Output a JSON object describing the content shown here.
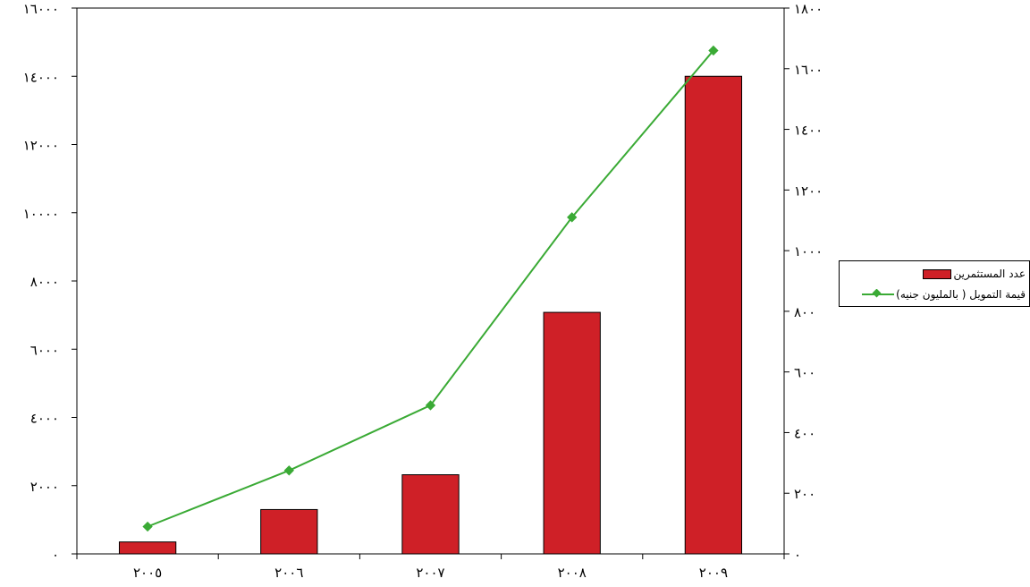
{
  "colors": {
    "bar": "#cf2027",
    "line": "#3aaa35",
    "axis": "#000000"
  },
  "chart_data": {
    "type": "bar",
    "categories": [
      "٢٠٠٥",
      "٢٠٠٦",
      "٢٠٠٧",
      "٢٠٠٨",
      "٢٠٠٩"
    ],
    "series": [
      {
        "name": "عدد المستثمرين",
        "type": "bar",
        "axis": "left",
        "values": [
          350,
          1300,
          2320,
          7080,
          14000
        ]
      },
      {
        "name": "قيمة التمويل  ( بالمليون جنيه)",
        "type": "line",
        "axis": "right",
        "values": [
          90,
          275,
          490,
          1110,
          1660
        ]
      }
    ],
    "left_axis": {
      "min": 0,
      "max": 16000,
      "step": 2000,
      "tick_labels": [
        "٠",
        "٢٠٠٠",
        "٤٠٠٠",
        "٦٠٠٠",
        "٨٠٠٠",
        "١٠٠٠٠",
        "١٢٠٠٠",
        "١٤٠٠٠",
        "١٦٠٠٠"
      ]
    },
    "right_axis": {
      "min": 0,
      "max": 1800,
      "step": 200,
      "tick_labels": [
        "٠",
        "٢٠٠",
        "٤٠٠",
        "٦٠٠",
        "٨٠٠",
        "١٠٠٠",
        "١٢٠٠",
        "١٤٠٠",
        "١٦٠٠",
        "١٨٠٠"
      ]
    },
    "grid": false,
    "legend_position": "right"
  }
}
